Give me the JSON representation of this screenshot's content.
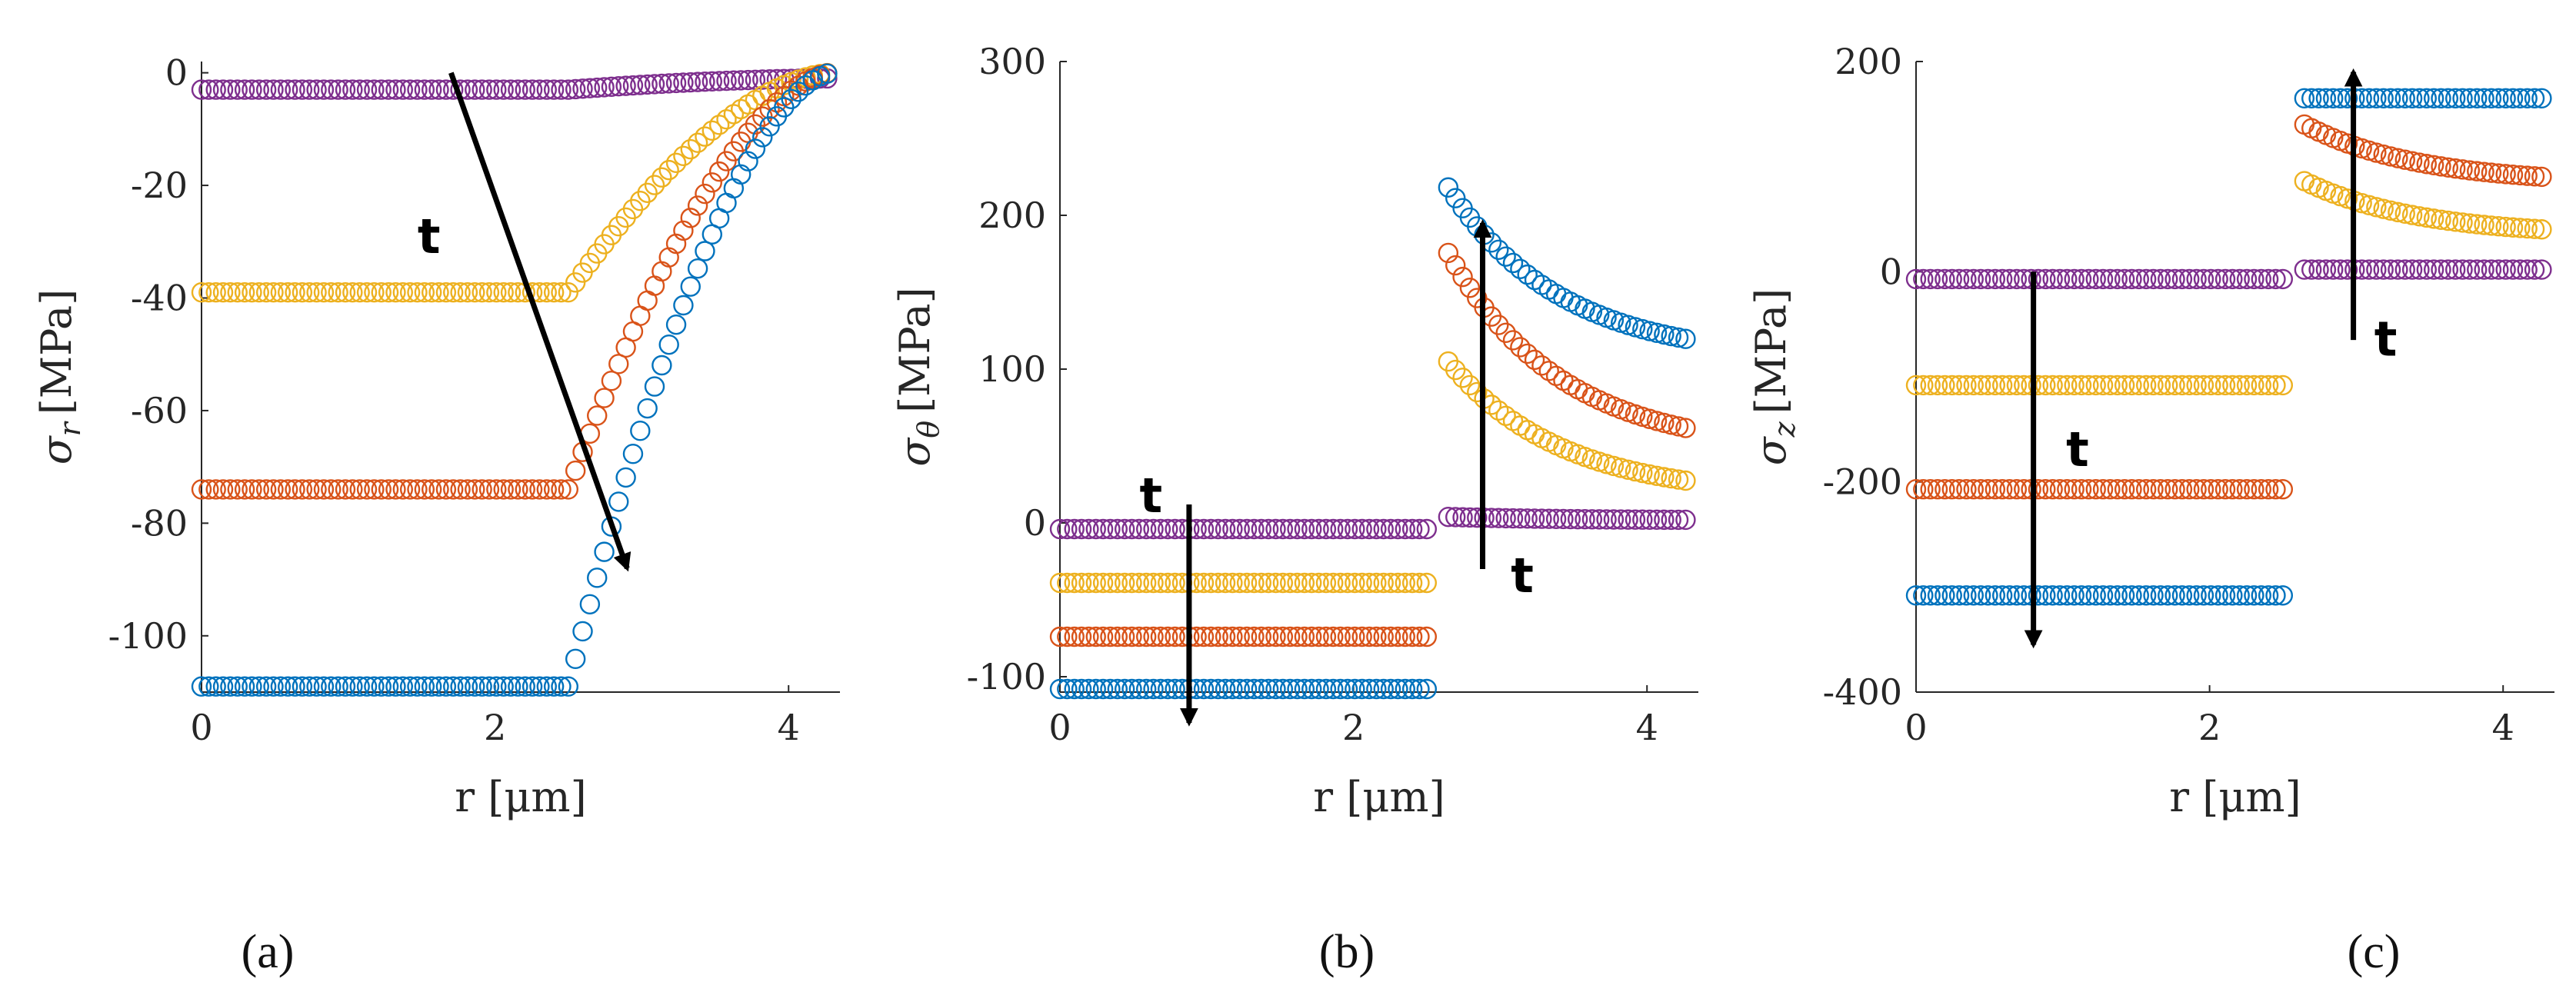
{
  "figure": {
    "subfigure_labels": [
      "(a)",
      "(b)",
      "(c)"
    ]
  },
  "series_colors": {
    "purple": "#7E2F8E",
    "yellow": "#EDB120",
    "orange": "#D95319",
    "blue": "#0072BD"
  },
  "chart_data": [
    {
      "id": "a",
      "type": "scatter",
      "xlabel": "r [μm]",
      "ylabel": "σ_r [MPa]",
      "xlim": [
        0,
        4.35
      ],
      "ylim": [
        -110,
        2
      ],
      "xticks": [
        0,
        2,
        4
      ],
      "yticks": [
        0,
        -20,
        -40,
        -60,
        -80,
        -100
      ],
      "series": [
        {
          "name": "purple",
          "color": "purple",
          "points_total": 90,
          "breakpoint": 2.5,
          "flat_value": -3,
          "shape": "transition",
          "end_value": -1,
          "transition_width": 1.8
        },
        {
          "name": "yellow",
          "color": "yellow",
          "points_total": 90,
          "breakpoint": 2.5,
          "flat_value": -39,
          "shape": "transition",
          "end_value": 0,
          "transition_width": 1.8
        },
        {
          "name": "orange",
          "color": "orange",
          "points_total": 90,
          "breakpoint": 2.5,
          "flat_value": -74,
          "shape": "transition",
          "end_value": 0,
          "transition_width": 1.8
        },
        {
          "name": "blue",
          "color": "blue",
          "points_total": 90,
          "breakpoint": 2.5,
          "flat_value": -109,
          "shape": "transition",
          "end_value": 0,
          "transition_width": 1.8
        }
      ],
      "annotations": [
        {
          "label": "t",
          "arrow_from": [
            1.7,
            0
          ],
          "arrow_to": [
            2.9,
            -88
          ],
          "label_at": [
            1.55,
            -32
          ]
        }
      ]
    },
    {
      "id": "b",
      "type": "scatter",
      "xlabel": "r [μm]",
      "ylabel": "σ_θ [MPa]",
      "xlim": [
        0,
        4.35
      ],
      "ylim": [
        -110,
        300
      ],
      "xticks": [
        0,
        2,
        4
      ],
      "yticks": [
        300,
        200,
        100,
        0,
        -100
      ],
      "series": [
        {
          "name": "purple",
          "color": "purple",
          "breakpoint": 2.5,
          "inner_value": -4,
          "outer_start": 4,
          "outer_end": 2
        },
        {
          "name": "yellow",
          "color": "yellow",
          "breakpoint": 2.5,
          "inner_value": -39,
          "outer_start": 108,
          "outer_end": 27
        },
        {
          "name": "orange",
          "color": "orange",
          "breakpoint": 2.5,
          "inner_value": -74,
          "outer_start": 180,
          "outer_end": 61
        },
        {
          "name": "blue",
          "color": "blue",
          "breakpoint": 2.5,
          "inner_value": -108,
          "outer_start": 222,
          "outer_end": 119
        }
      ],
      "annotations": [
        {
          "label": "t",
          "arrow_from": [
            0.88,
            12
          ],
          "arrow_to": [
            0.88,
            -130
          ],
          "label_at": [
            0.62,
            7
          ]
        },
        {
          "label": "t",
          "arrow_from": [
            2.88,
            -30
          ],
          "arrow_to": [
            2.88,
            195
          ],
          "label_at": [
            3.15,
            -45
          ]
        }
      ]
    },
    {
      "id": "c",
      "type": "scatter",
      "xlabel": "r [μm]",
      "ylabel": "σ_z [MPa]",
      "xlim": [
        0,
        4.35
      ],
      "ylim": [
        -400,
        200
      ],
      "xticks": [
        0,
        2,
        4
      ],
      "yticks": [
        200,
        0,
        -200,
        -400
      ],
      "series": [
        {
          "name": "purple",
          "color": "purple",
          "breakpoint": 2.5,
          "inner_value": -7,
          "outer_start": 2,
          "outer_end": 2
        },
        {
          "name": "yellow",
          "color": "yellow",
          "breakpoint": 2.5,
          "inner_value": -108,
          "outer_start": 88,
          "outer_end": 40
        },
        {
          "name": "orange",
          "color": "orange",
          "breakpoint": 2.5,
          "inner_value": -207,
          "outer_start": 142,
          "outer_end": 90
        },
        {
          "name": "blue",
          "color": "blue",
          "breakpoint": 2.5,
          "inner_value": -308,
          "outer_start": 165,
          "outer_end": 165
        }
      ],
      "annotations": [
        {
          "label": "t",
          "arrow_from": [
            0.8,
            0
          ],
          "arrow_to": [
            0.8,
            -355
          ],
          "label_at": [
            1.1,
            -185
          ]
        },
        {
          "label": "t",
          "arrow_from": [
            2.98,
            -65
          ],
          "arrow_to": [
            2.98,
            190
          ],
          "label_at": [
            3.2,
            -80
          ]
        }
      ]
    }
  ]
}
